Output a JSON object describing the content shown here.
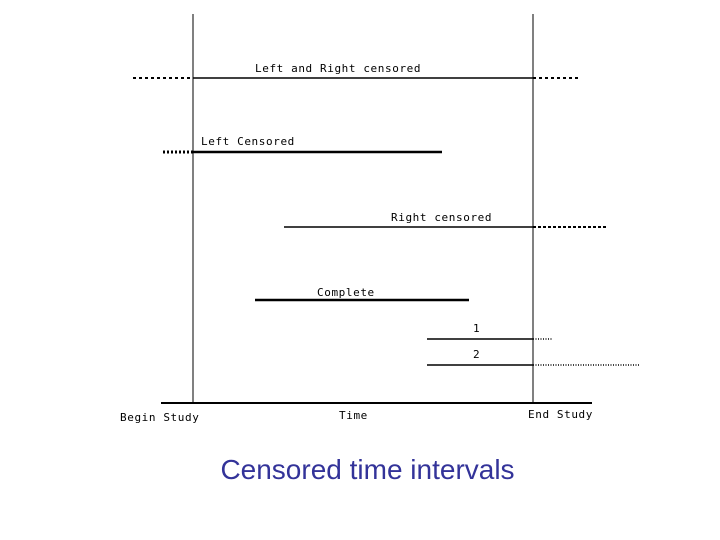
{
  "diagram": {
    "labels": {
      "left_and_right": "Left and Right censored",
      "left": "Left Censored",
      "right": "Right censored",
      "complete": "Complete",
      "case_1": "1",
      "case_2": "2",
      "begin_study": "Begin Study",
      "time": "Time",
      "end_study": "End Study"
    }
  },
  "caption": "Censored time intervals"
}
